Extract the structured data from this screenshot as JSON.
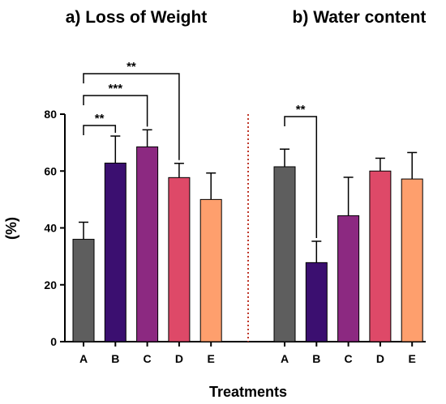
{
  "chart_data": [
    {
      "type": "bar",
      "title": "a) Loss of Weight",
      "categories": [
        "A",
        "B",
        "C",
        "D",
        "E"
      ],
      "values": [
        36,
        62.8,
        68.5,
        57.7,
        50
      ],
      "error": [
        6,
        9.5,
        6,
        5,
        9.3
      ],
      "colors": [
        "#5e5e5e",
        "#3b0f70",
        "#8c2981",
        "#de4968",
        "#fe9f6d"
      ],
      "ylabel": "(%)",
      "ylim": [
        0,
        80
      ],
      "yticks": [
        "0",
        "20",
        "40",
        "60",
        "80"
      ],
      "significance": [
        {
          "from": "A",
          "to": "B",
          "label": "**"
        },
        {
          "from": "A",
          "to": "C",
          "label": "***"
        },
        {
          "from": "A",
          "to": "D",
          "label": "**"
        }
      ]
    },
    {
      "type": "bar",
      "title": "b) Water content",
      "categories": [
        "A",
        "B",
        "C",
        "D",
        "E"
      ],
      "values": [
        61.5,
        27.8,
        44.3,
        60,
        57.2
      ],
      "error": [
        6.2,
        7.5,
        13.5,
        4.5,
        9.3
      ],
      "colors": [
        "#5e5e5e",
        "#3b0f70",
        "#8c2981",
        "#de4968",
        "#fe9f6d"
      ],
      "significance": [
        {
          "from": "A",
          "to": "B",
          "label": "**"
        }
      ]
    }
  ],
  "xlabel": "Treatments",
  "divider_color": "#c0392b"
}
